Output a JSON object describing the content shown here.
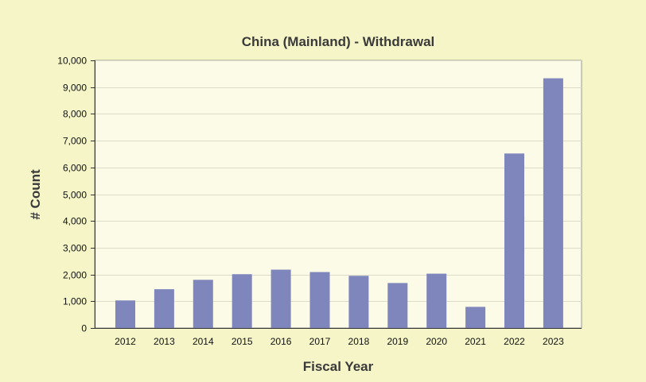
{
  "chart_data": {
    "type": "bar",
    "title": "China (Mainland) - Withdrawal",
    "xlabel": "Fiscal Year",
    "ylabel": "# Count",
    "categories": [
      "2012",
      "2013",
      "2014",
      "2015",
      "2016",
      "2017",
      "2018",
      "2019",
      "2020",
      "2021",
      "2022",
      "2023"
    ],
    "values": [
      1030,
      1450,
      1800,
      2010,
      2180,
      2090,
      1950,
      1680,
      2030,
      790,
      6520,
      9330
    ],
    "ylim": [
      0,
      10000
    ],
    "yticks": [
      0,
      1000,
      2000,
      3000,
      4000,
      5000,
      6000,
      7000,
      8000,
      9000,
      10000
    ],
    "ytick_labels": [
      "0",
      "1,000",
      "2,000",
      "3,000",
      "4,000",
      "5,000",
      "6,000",
      "7,000",
      "8,000",
      "9,000",
      "10,000"
    ],
    "grid": true,
    "legend": "none",
    "colors": {
      "bar": "#7f86bc",
      "plot_background": "#fbfbe8",
      "page_background": "#f5f5c8",
      "grid": "#dcdcc8",
      "axis": "#333333"
    }
  }
}
